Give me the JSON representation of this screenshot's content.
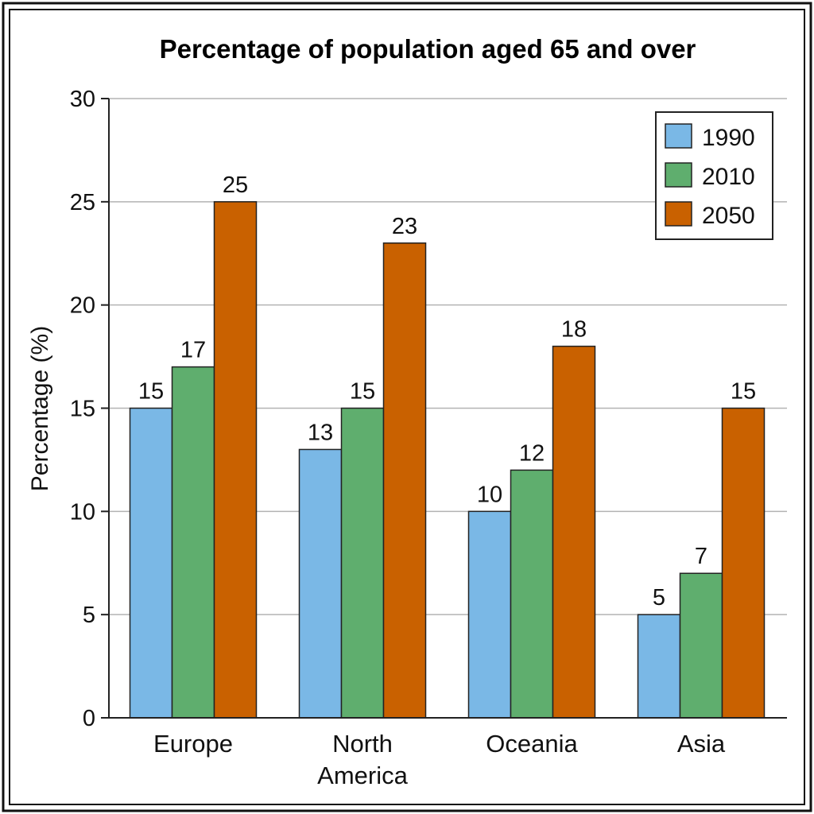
{
  "chart_data": {
    "type": "bar",
    "title": "Percentage of population aged 65 and over",
    "ylabel": "Percentage (%)",
    "xlabel": "",
    "categories": [
      [
        "Europe"
      ],
      [
        "North",
        "America"
      ],
      [
        "Oceania"
      ],
      [
        "Asia"
      ]
    ],
    "series": [
      {
        "name": "1990",
        "color": "#7ab8e6",
        "values": [
          15,
          13,
          10,
          5
        ]
      },
      {
        "name": "2010",
        "color": "#5fae6e",
        "values": [
          17,
          15,
          12,
          7
        ]
      },
      {
        "name": "2050",
        "color": "#c96100",
        "values": [
          25,
          23,
          18,
          15
        ]
      }
    ],
    "ylim": [
      0,
      30
    ],
    "yticks": [
      0,
      5,
      10,
      15,
      20,
      25,
      30
    ],
    "grid": true,
    "legend_position": "top-right",
    "data_labels": true
  }
}
